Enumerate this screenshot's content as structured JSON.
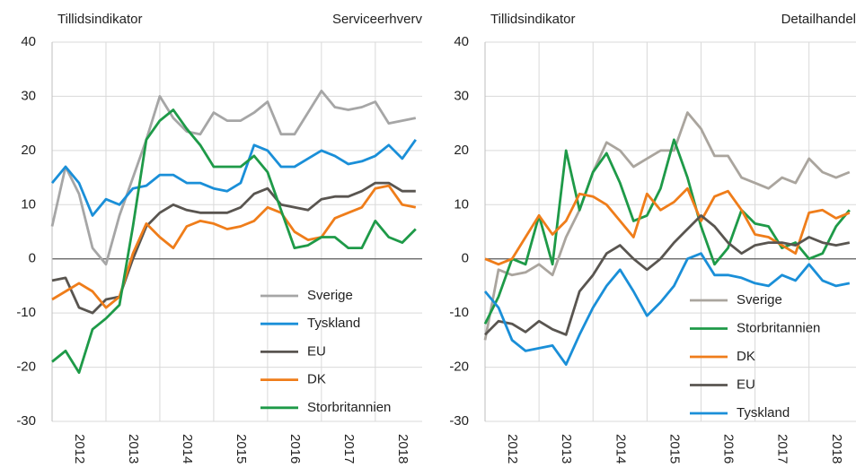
{
  "chart_data": [
    {
      "type": "line",
      "title": "Tillidsindikator",
      "subtitle": "Serviceerhverv",
      "x": [
        2012,
        2012.25,
        2012.5,
        2012.75,
        2013,
        2013.25,
        2013.5,
        2013.75,
        2014,
        2014.25,
        2014.5,
        2014.75,
        2015,
        2015.25,
        2015.5,
        2015.75,
        2016,
        2016.25,
        2016.5,
        2016.75,
        2017,
        2017.25,
        2017.5,
        2017.75,
        2018,
        2018.25,
        2018.5,
        2018.75
      ],
      "series": [
        {
          "name": "Sverige",
          "color": "#a6a6a6",
          "values": [
            6,
            17,
            12,
            2,
            -1,
            8,
            15,
            22,
            30,
            26,
            23.5,
            23,
            27,
            25.5,
            25.5,
            27,
            29,
            23,
            23,
            27,
            31,
            28,
            27.5,
            28,
            29,
            25,
            25.5,
            26
          ]
        },
        {
          "name": "Tyskland",
          "color": "#1a8fd8",
          "values": [
            14,
            17,
            14,
            8,
            11,
            10,
            13,
            13.5,
            15.5,
            15.5,
            14,
            14,
            13,
            12.5,
            14,
            21,
            20,
            17,
            17,
            18.5,
            20,
            19,
            17.5,
            18,
            19,
            21,
            18.5,
            22
          ]
        },
        {
          "name": "EU",
          "color": "#595550",
          "values": [
            -4,
            -3.5,
            -9,
            -10,
            -7.5,
            -7,
            0,
            6,
            8.5,
            10,
            9,
            8.5,
            8.5,
            8.5,
            9.5,
            12,
            13,
            10,
            9.5,
            9,
            11,
            11.5,
            11.5,
            12.5,
            14,
            14,
            12.5,
            12.5
          ]
        },
        {
          "name": "DK",
          "color": "#ef7d1a",
          "values": [
            -7.5,
            -6,
            -4.5,
            -6,
            -9,
            -7,
            1,
            6.5,
            4,
            2,
            6,
            7,
            6.5,
            5.5,
            6,
            7,
            9.5,
            8.5,
            5,
            3.5,
            4,
            7.5,
            8.5,
            9.5,
            13,
            13.5,
            10,
            9.5
          ]
        },
        {
          "name": "Storbritannien",
          "color": "#1e9a48",
          "values": [
            -19,
            -17,
            -21,
            -13,
            -11,
            -8.5,
            6,
            22,
            25.5,
            27.5,
            24,
            21,
            17,
            17,
            17,
            19,
            16,
            9,
            2,
            2.5,
            4,
            4,
            2,
            2,
            7,
            4,
            3,
            5.5
          ]
        }
      ],
      "xlim": [
        2012,
        2018.87
      ],
      "xticks": [
        {
          "value": 2012.5,
          "label": "2012"
        },
        {
          "value": 2013.5,
          "label": "2013"
        },
        {
          "value": 2014.5,
          "label": "2014"
        },
        {
          "value": 2015.5,
          "label": "2015"
        },
        {
          "value": 2016.5,
          "label": "2016"
        },
        {
          "value": 2017.5,
          "label": "2017"
        },
        {
          "value": 2018.5,
          "label": "2018"
        }
      ],
      "xgrid": [
        2013,
        2014,
        2015,
        2016,
        2017,
        2018
      ],
      "ylim": [
        -30,
        40
      ],
      "yticks": [
        -30,
        -20,
        -10,
        0,
        10,
        20,
        30,
        40
      ],
      "grid": true
    },
    {
      "type": "line",
      "title": "Tillidsindikator",
      "subtitle": "Detailhandel",
      "x": [
        2012,
        2012.25,
        2012.5,
        2012.75,
        2013,
        2013.25,
        2013.5,
        2013.75,
        2014,
        2014.25,
        2014.5,
        2014.75,
        2015,
        2015.25,
        2015.5,
        2015.75,
        2016,
        2016.25,
        2016.5,
        2016.75,
        2017,
        2017.25,
        2017.5,
        2017.75,
        2018,
        2018.25,
        2018.5,
        2018.75
      ],
      "series": [
        {
          "name": "Sverige",
          "color": "#aaa59e",
          "values": [
            -15,
            -2,
            -3,
            -2.5,
            -1,
            -3,
            4,
            9,
            16,
            21.5,
            20,
            17,
            18.5,
            20,
            20,
            27,
            24,
            19,
            19,
            15,
            14,
            13,
            15,
            14,
            18.5,
            16,
            15,
            16
          ]
        },
        {
          "name": "Storbritannien",
          "color": "#1e9a48",
          "values": [
            -12,
            -7,
            0,
            -1,
            8,
            -1,
            20,
            9,
            16,
            19.5,
            14,
            7,
            8,
            13,
            22,
            15,
            6,
            -1,
            2,
            9,
            6.5,
            6,
            2,
            3,
            0,
            1,
            6,
            9
          ]
        },
        {
          "name": "DK",
          "color": "#ef7d1a",
          "values": [
            0,
            -1,
            0,
            4,
            8,
            4.5,
            7,
            12,
            11.5,
            10,
            7,
            4,
            12,
            9,
            10.5,
            13,
            7,
            11.5,
            12.5,
            9,
            4.5,
            4,
            2.5,
            1,
            8.5,
            9,
            7.5,
            8.5
          ]
        },
        {
          "name": "EU",
          "color": "#595550",
          "values": [
            -14,
            -11.5,
            -12,
            -13.5,
            -11.5,
            -13,
            -14,
            -6,
            -3,
            1,
            2.5,
            0,
            -2,
            0,
            3,
            5.5,
            8,
            6,
            3,
            1,
            2.5,
            3,
            3,
            2.5,
            4,
            3,
            2.5,
            3
          ]
        },
        {
          "name": "Tyskland",
          "color": "#1a8fd8",
          "values": [
            -6,
            -9,
            -15,
            -17,
            -16.5,
            -16,
            -19.5,
            -14,
            -9,
            -5,
            -2,
            -6,
            -10.5,
            -8,
            -5,
            0,
            1,
            -3,
            -3,
            -3.5,
            -4.5,
            -5,
            -3,
            -4,
            -1,
            -4,
            -5,
            -4.5
          ]
        }
      ],
      "xlim": [
        2012,
        2018.87
      ],
      "xticks": [
        {
          "value": 2012.5,
          "label": "2012"
        },
        {
          "value": 2013.5,
          "label": "2013"
        },
        {
          "value": 2014.5,
          "label": "2014"
        },
        {
          "value": 2015.5,
          "label": "2015"
        },
        {
          "value": 2016.5,
          "label": "2016"
        },
        {
          "value": 2017.5,
          "label": "2017"
        },
        {
          "value": 2018.5,
          "label": "2018"
        }
      ],
      "xgrid": [
        2013,
        2014,
        2015,
        2016,
        2017,
        2018
      ],
      "ylim": [
        -30,
        40
      ],
      "yticks": [
        -30,
        -20,
        -10,
        0,
        10,
        20,
        30,
        40
      ],
      "grid": true
    }
  ]
}
